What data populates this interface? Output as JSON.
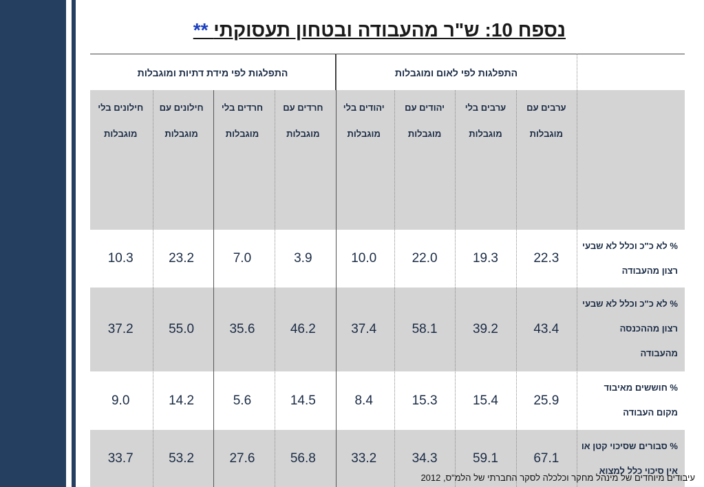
{
  "title": {
    "text": "נספח 10: ש\"ר מהעבודה ובטחון תעסוקתי",
    "stars": "**"
  },
  "groups": {
    "nation": "התפלגות לפי לאום ומוגבלות",
    "religion": "התפלגות לפי מידת דתיות ומוגבלות"
  },
  "columns": [
    "ערבים עם מוגבלות",
    "ערבים בלי מוגבלות",
    "יהודים עם מוגבלות",
    "יהודים בלי מוגבלות",
    "חרדים עם מוגבלות",
    "חרדים בלי מוגבלות",
    "חילונים עם מוגבלות",
    "חילונים בלי מוגבלות"
  ],
  "rows": [
    {
      "label": "% לא כ\"כ וכלל לא שבעי רצון מהעבודה",
      "values": [
        "22.3",
        "19.3",
        "22.0",
        "10.0",
        "3.9",
        "7.0",
        "23.2",
        "10.3"
      ]
    },
    {
      "label": "% לא כ\"כ וכלל לא שבעי רצון מההכנסה מהעבודה",
      "values": [
        "43.4",
        "39.2",
        "58.1",
        "37.4",
        "46.2",
        "35.6",
        "55.0",
        "37.2"
      ]
    },
    {
      "label": "% חוששים מאיבוד מקום העבודה",
      "values": [
        "25.9",
        "15.4",
        "15.3",
        "8.4",
        "14.5",
        "5.6",
        "14.2",
        "9.0"
      ]
    },
    {
      "label": "% סבורים שסיכוי קטן או אין סיכוי כלל למצוא עבודה אחרת אם יפוטרו",
      "values": [
        "67.1",
        "59.1",
        "34.3",
        "33.2",
        "56.8",
        "27.6",
        "53.2",
        "33.7"
      ]
    }
  ],
  "footer": "עיבודים מיוחדים של מינהל מחקר וכלכלה  לסקר החברתי של הלמ\"ס,  2012"
}
